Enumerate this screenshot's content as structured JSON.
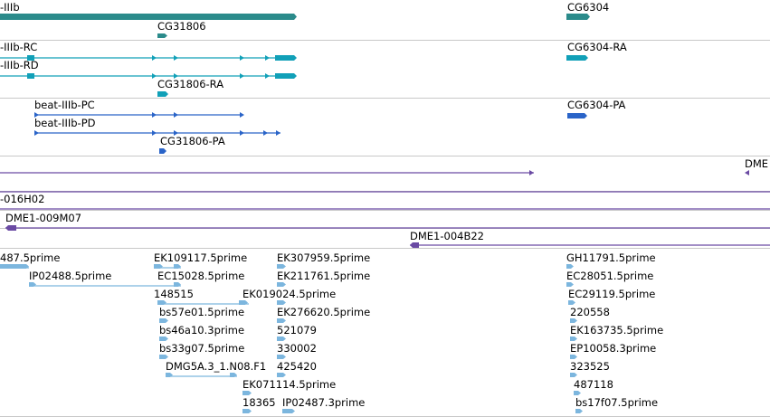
{
  "colors": {
    "gene": "#2b8b8b",
    "mrna": "#11a0b8",
    "protein": "#2a64c8",
    "clone": "#6a4aa3",
    "est": "#7cb6de",
    "separator": "#c8c8c8"
  },
  "tracks": {
    "gene": {
      "labels": [
        "-IIIb",
        "CG31806",
        "CG6304"
      ]
    },
    "mrna": {
      "labels": [
        "-IIIb-RC",
        "-IIIb-RD",
        "CG31806-RA",
        "CG6304-RA"
      ]
    },
    "protein": {
      "labels": [
        "beat-IIIb-PC",
        "beat-IIIb-PD",
        "CG31806-PA",
        "CG6304-PA"
      ]
    },
    "clone_top": {
      "labels": [
        "DME"
      ]
    },
    "clones": {
      "labels": [
        "-016H02",
        "DME1-009M07",
        "DME1-004B22"
      ]
    },
    "est": {
      "labels": [
        "487.5prime",
        "IP02488.5prime",
        "EK109117.5prime",
        "EC15028.5prime",
        "148515",
        "bs57e01.5prime",
        "bs46a10.3prime",
        "bs33g07.5prime",
        "DMG5A.3_1.N08.F1",
        "EK307959.5prime",
        "EK211761.5prime",
        "EK019024.5prime",
        "EK276620.5prime",
        "521079",
        "330002",
        "425420",
        "EK071114.5prime",
        "18365",
        "IP02487.3prime",
        "GH11791.5prime",
        "EC28051.5prime",
        "EC29119.5prime",
        "220558",
        "EK163735.5prime",
        "EP10058.3prime",
        "323525",
        "487118",
        "bs17f07.5prime"
      ]
    }
  }
}
